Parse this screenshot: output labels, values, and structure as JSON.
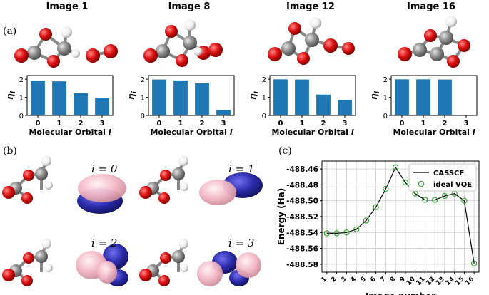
{
  "panel_labels": {
    "a": "(a)",
    "b": "(b)",
    "c": "(c)"
  },
  "image_titles": [
    "Image 1",
    "Image 8",
    "Image 12",
    "Image 16"
  ],
  "orbital_labels": [
    "i = 0",
    "i = 1",
    "i = 2",
    "i = 3"
  ],
  "colors": {
    "bar": "#1f77b4",
    "oxygen": "#dd1111",
    "carbon": "#8c8c8c",
    "hydrogen": "#f2f2f2",
    "lobe_pos": "#f2b6c4",
    "lobe_neg": "#2a2aa8",
    "ideal_vqe": "#2ca02c",
    "casscf": "#000000"
  },
  "chart_data": [
    {
      "type": "bar",
      "title": "Image 1",
      "categories": [
        "0",
        "1",
        "2",
        "3"
      ],
      "values": [
        1.92,
        1.88,
        1.22,
        0.98
      ],
      "ylabel": "η_i",
      "xlabel": "Molecular Orbital i",
      "ylim": [
        0,
        2.2
      ],
      "yticks": [
        "0",
        "1",
        "2"
      ]
    },
    {
      "type": "bar",
      "title": "Image 8",
      "categories": [
        "0",
        "1",
        "2",
        "3"
      ],
      "values": [
        1.98,
        1.93,
        1.77,
        0.3
      ],
      "ylabel": "η_i",
      "xlabel": "Molecular Orbital i",
      "ylim": [
        0,
        2.2
      ],
      "yticks": [
        "0",
        "1",
        "2"
      ]
    },
    {
      "type": "bar",
      "title": "Image 12",
      "categories": [
        "0",
        "1",
        "2",
        "3"
      ],
      "values": [
        1.99,
        1.98,
        1.15,
        0.86
      ],
      "ylabel": "η_i",
      "xlabel": "Molecular Orbital i",
      "ylim": [
        0,
        2.2
      ],
      "yticks": [
        "0",
        "1",
        "2"
      ]
    },
    {
      "type": "bar",
      "title": "Image 16",
      "categories": [
        "0",
        "1",
        "2",
        "3"
      ],
      "values": [
        1.99,
        1.99,
        1.98,
        0.0
      ],
      "ylabel": "η_i",
      "xlabel": "Molecular Orbital i",
      "ylim": [
        0,
        2.2
      ],
      "yticks": [
        "0",
        "1",
        "2"
      ]
    },
    {
      "type": "line",
      "xlabel": "Image number",
      "ylabel": "Energy (Ha)",
      "x": [
        1,
        2,
        3,
        4,
        5,
        6,
        7,
        8,
        9,
        10,
        11,
        12,
        13,
        14,
        15,
        16
      ],
      "xticks": [
        "1",
        "2",
        "3",
        "4",
        "5",
        "6",
        "7",
        "8",
        "9",
        "10",
        "11",
        "12",
        "13",
        "14",
        "15",
        "16"
      ],
      "xlim": [
        0.5,
        16.5
      ],
      "ylim": [
        -488.59,
        -488.45
      ],
      "yticks": [
        "-488.46",
        "-488.48",
        "-488.50",
        "-488.52",
        "-488.54",
        "-488.56",
        "-488.58"
      ],
      "ytick_values": [
        -488.46,
        -488.48,
        -488.5,
        -488.52,
        -488.54,
        -488.56,
        -488.58
      ],
      "grid": true,
      "legend_position": "top-right",
      "series": [
        {
          "name": "CASSCF",
          "style": "line",
          "values": [
            -488.541,
            -488.541,
            -488.54,
            -488.536,
            -488.525,
            -488.508,
            -488.485,
            -488.458,
            -488.477,
            -488.491,
            -488.499,
            -488.499,
            -488.494,
            -488.491,
            -488.5,
            -488.579
          ]
        },
        {
          "name": "ideal VQE",
          "style": "hollow-circle",
          "values": [
            -488.541,
            -488.541,
            -488.54,
            -488.536,
            -488.525,
            -488.508,
            -488.485,
            -488.458,
            -488.477,
            -488.491,
            -488.499,
            -488.499,
            -488.494,
            -488.491,
            -488.5,
            -488.579
          ]
        }
      ]
    }
  ]
}
